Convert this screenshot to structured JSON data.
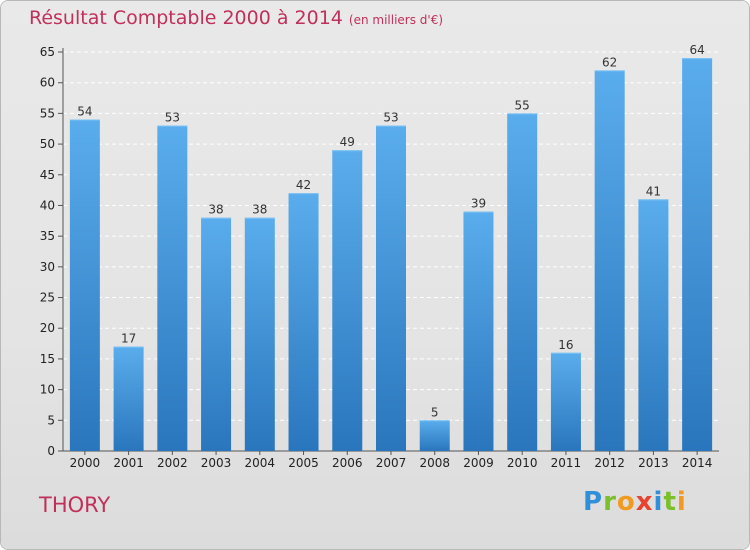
{
  "header": {
    "title": "Résultat Comptable 2000 à 2014",
    "unit": "(en milliers d'€)"
  },
  "town": "THORY",
  "logo": {
    "letters": [
      "P",
      "r",
      "o",
      "x",
      "i",
      "t",
      "i"
    ],
    "colors": [
      "#2f8fd8",
      "#7bbf2a",
      "#f29a1f",
      "#e8432e",
      "#2f8fd8",
      "#7bbf2a",
      "#f29a1f"
    ]
  },
  "chart_data": {
    "type": "bar",
    "title": "Résultat Comptable 2000 à 2014",
    "subtitle": "(en milliers d'€)",
    "categories": [
      "2000",
      "2001",
      "2002",
      "2003",
      "2004",
      "2005",
      "2006",
      "2007",
      "2008",
      "2009",
      "2010",
      "2011",
      "2012",
      "2013",
      "2014"
    ],
    "values": [
      54,
      17,
      53,
      38,
      38,
      42,
      49,
      53,
      5,
      39,
      55,
      16,
      62,
      41,
      64
    ],
    "ylim": [
      0,
      65
    ],
    "yticks": [
      0,
      5,
      10,
      15,
      20,
      25,
      30,
      35,
      40,
      45,
      50,
      55,
      60,
      65
    ],
    "grid": true,
    "bar_color": "#3d8ed6",
    "bar_color_light": "#5aadec",
    "bar_color_dark": "#2a76bd"
  }
}
